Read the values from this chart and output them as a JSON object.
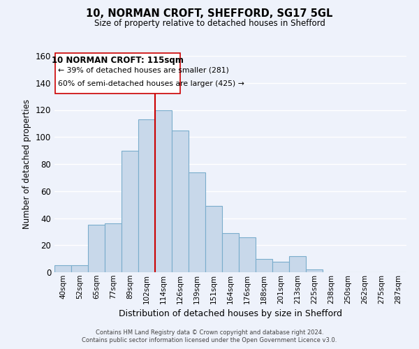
{
  "title1": "10, NORMAN CROFT, SHEFFORD, SG17 5GL",
  "title2": "Size of property relative to detached houses in Shefford",
  "xlabel": "Distribution of detached houses by size in Shefford",
  "ylabel": "Number of detached properties",
  "bar_labels": [
    "40sqm",
    "52sqm",
    "65sqm",
    "77sqm",
    "89sqm",
    "102sqm",
    "114sqm",
    "126sqm",
    "139sqm",
    "151sqm",
    "164sqm",
    "176sqm",
    "188sqm",
    "201sqm",
    "213sqm",
    "225sqm",
    "238sqm",
    "250sqm",
    "262sqm",
    "275sqm",
    "287sqm"
  ],
  "bar_heights": [
    5,
    5,
    35,
    36,
    90,
    113,
    120,
    105,
    74,
    49,
    29,
    26,
    10,
    8,
    12,
    2,
    0,
    0,
    0,
    0,
    0
  ],
  "bar_color": "#c8d8ea",
  "bar_edge_color": "#7aadcc",
  "vline_x": 6,
  "vline_color": "#cc0000",
  "ylim": [
    0,
    160
  ],
  "yticks": [
    0,
    20,
    40,
    60,
    80,
    100,
    120,
    140,
    160
  ],
  "annotation_title": "10 NORMAN CROFT: 115sqm",
  "annotation_line1": "← 39% of detached houses are smaller (281)",
  "annotation_line2": "60% of semi-detached houses are larger (425) →",
  "footer1": "Contains HM Land Registry data © Crown copyright and database right 2024.",
  "footer2": "Contains public sector information licensed under the Open Government Licence v3.0.",
  "background_color": "#eef2fb",
  "grid_color": "#ffffff"
}
